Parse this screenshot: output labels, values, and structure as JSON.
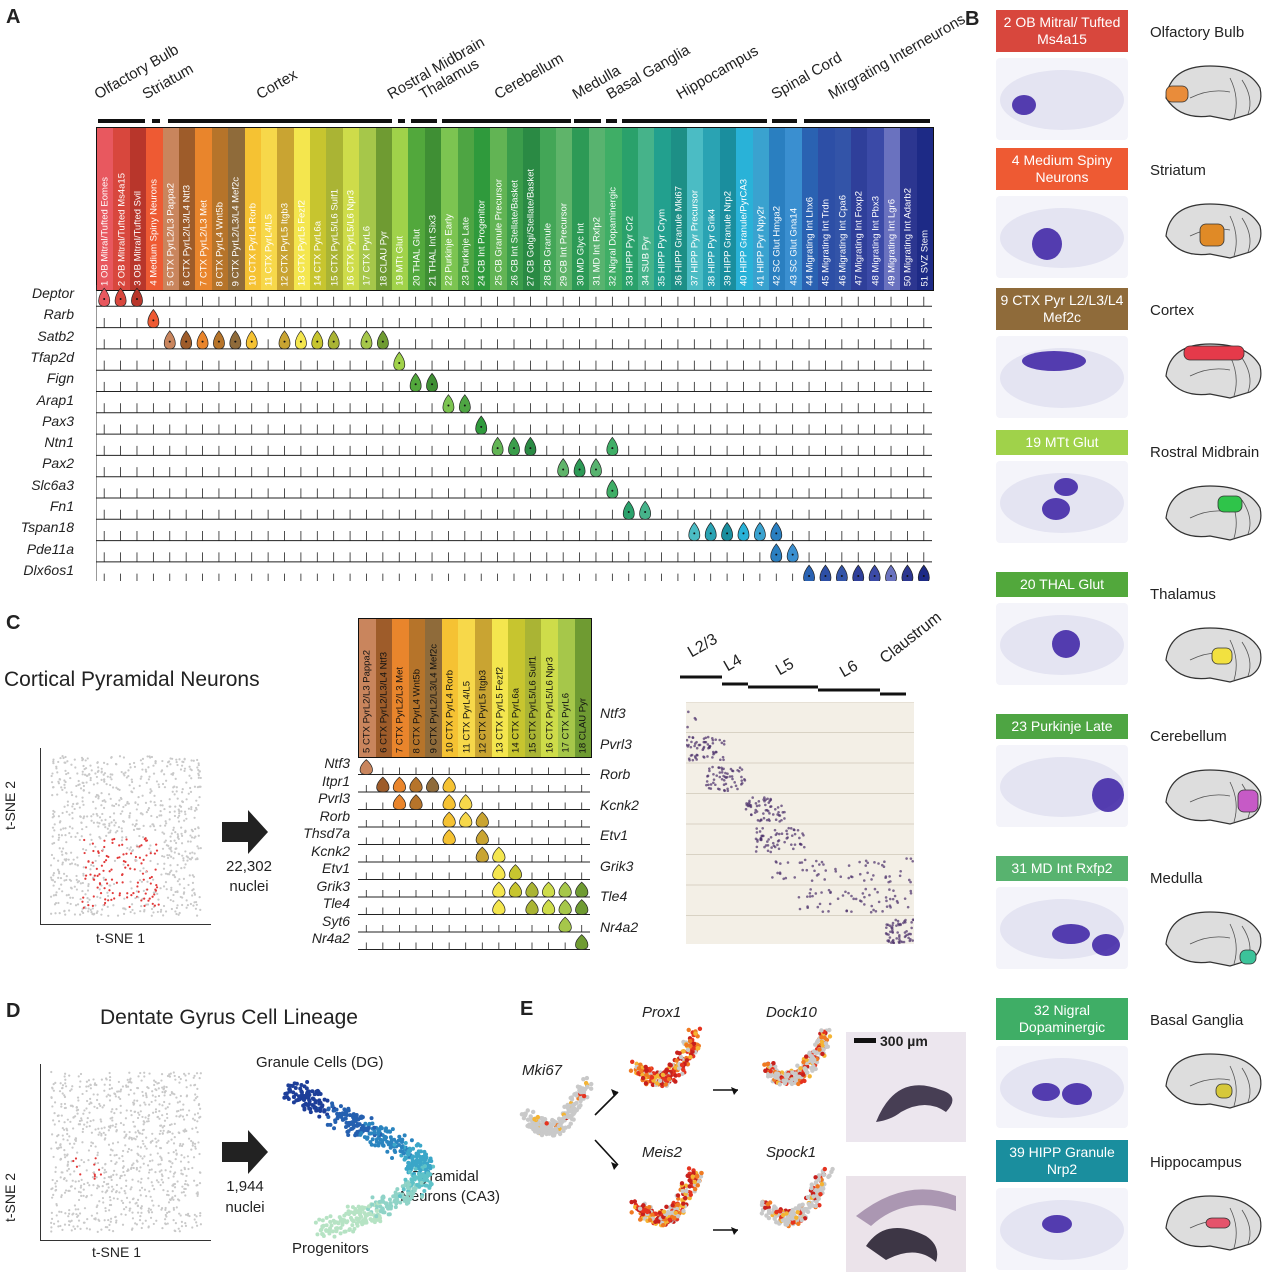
{
  "panels": {
    "A": "A",
    "B": "B",
    "C": "C",
    "D": "D",
    "E": "E"
  },
  "regions": [
    "Olfactory Bulb",
    "Striatum",
    "Cortex",
    "Rostral Midbrain",
    "Thalamus",
    "Cerebellum",
    "Medulla",
    "Basal Ganglia",
    "Hippocampus",
    "Spinal Cord",
    "Mirgrating Interneurons"
  ],
  "clusters": [
    {
      "label": "1 OB Mitral/Tufted Eomes",
      "color": "#e8585f"
    },
    {
      "label": "2 OB Mitral/Tufted Ms4a15",
      "color": "#d8473d"
    },
    {
      "label": "3 OB Mitral/Tufted Svil",
      "color": "#b8362b"
    },
    {
      "label": "4 Medium Spiny Neurons",
      "color": "#ee5a33"
    },
    {
      "label": "5 CTX PyrL2/L3 Pappa2",
      "color": "#c9855d"
    },
    {
      "label": "6 CTX PyrL2/L3/L4 Ntf3",
      "color": "#9e5c2a"
    },
    {
      "label": "7 CTX PyrL2/L3 Met",
      "color": "#e9852c"
    },
    {
      "label": "8 CTX PyrL4 Wnt5b",
      "color": "#b6742a"
    },
    {
      "label": "9 CTX PyrL2/L3/L4 Mef2c",
      "color": "#8f6b3a"
    },
    {
      "label": "10 CTX PyrL4 Rorb",
      "color": "#f5c233"
    },
    {
      "label": "11 CTX PyrL4/L5",
      "color": "#f7d84a"
    },
    {
      "label": "12 CTX PyrL5 Itgb3",
      "color": "#c9a432"
    },
    {
      "label": "13 CTX PyrL5 Fezf2",
      "color": "#f4e64e"
    },
    {
      "label": "14 CTX PyrL6a",
      "color": "#c7c52f"
    },
    {
      "label": "15 CTX PyrL5/L6 Sulf1",
      "color": "#aab434"
    },
    {
      "label": "16 CTX PyrL5/L6 Npr3",
      "color": "#cedc4a"
    },
    {
      "label": "17 CTX PyrL6",
      "color": "#a6c74a"
    },
    {
      "label": "18 CLAU Pyr",
      "color": "#6f9b32"
    },
    {
      "label": "19 MTt Glut",
      "color": "#a0d24a"
    },
    {
      "label": "20 THAL Glut",
      "color": "#52a83c"
    },
    {
      "label": "21 THAL Int Six3",
      "color": "#3f8f34"
    },
    {
      "label": "22 Purkinje Early",
      "color": "#7cc451"
    },
    {
      "label": "23 Purkinje Late",
      "color": "#4ea543"
    },
    {
      "label": "24 CB Int Progenitor",
      "color": "#2f9a3c"
    },
    {
      "label": "25 CB Granule Precursor",
      "color": "#62b454"
    },
    {
      "label": "26 CB Int Stellate/Basket",
      "color": "#3b9d4b"
    },
    {
      "label": "27 CB Golgi/Stellate/Basket",
      "color": "#2a8a44"
    },
    {
      "label": "28 CB Granule",
      "color": "#43a657"
    },
    {
      "label": "29 CB Int Precursor",
      "color": "#5fb46a"
    },
    {
      "label": "30 MD Glyc Int",
      "color": "#2d9a56"
    },
    {
      "label": "31 MD Int Rxfp2",
      "color": "#58b36f"
    },
    {
      "label": "32 Nigral Dopaminergic",
      "color": "#3fae66"
    },
    {
      "label": "33 HIPP Pyr Cr2",
      "color": "#2aa16b"
    },
    {
      "label": "34 SUB Pyr",
      "color": "#46b38a"
    },
    {
      "label": "35 HIPP Pyr Crym",
      "color": "#22a08e"
    },
    {
      "label": "36 HIPP Granule Mki67",
      "color": "#1d8f86"
    },
    {
      "label": "37 HIPP Pyr Precursor",
      "color": "#4bbcc4"
    },
    {
      "label": "38 HIPP Pyr Grik4",
      "color": "#2aa3b3"
    },
    {
      "label": "39 HIPP Granule Nrp2",
      "color": "#1a8e9e"
    },
    {
      "label": "40 HIPP Granule/PyrCA3",
      "color": "#29b2d8"
    },
    {
      "label": "41 HIPP Pyr Npy2r",
      "color": "#3aa2cf"
    },
    {
      "label": "42 SC Glut Hmga2",
      "color": "#2a7fc0"
    },
    {
      "label": "43 SC Glut Gna14",
      "color": "#3a8fd0"
    },
    {
      "label": "44 Migrating Int Lhx6",
      "color": "#2a62b2"
    },
    {
      "label": "45 Migrating Int Trdn",
      "color": "#2d4fa6"
    },
    {
      "label": "46 Migrating Int Cpa6",
      "color": "#3354a8"
    },
    {
      "label": "47 Migrating Int Foxp2",
      "color": "#2f3f9a"
    },
    {
      "label": "48 Migrating Int Pbx3",
      "color": "#3b4aa7"
    },
    {
      "label": "49 Migrating Int Lgr6",
      "color": "#6a72bf"
    },
    {
      "label": "50 Migrating Int Adarb2",
      "color": "#2c3690"
    },
    {
      "label": "51 SVZ Stem",
      "color": "#1d2a86"
    }
  ],
  "genesA": [
    "Deptor",
    "Rarb",
    "Satb2",
    "Tfap2d",
    "Fign",
    "Arap1",
    "Pax3",
    "Ntn1",
    "Pax2",
    "Slc6a3",
    "Fn1",
    "Tspan18",
    "Pde11a",
    "Dlx6os1"
  ],
  "panelC": {
    "title": "Cortical Pyramidal Neurons",
    "tsne_y": "t-SNE 2",
    "tsne_x": "t-SNE 1",
    "count": "22,302",
    "count_unit": "nuclei",
    "genes": [
      "Ntf3",
      "Itpr1",
      "Pvrl3",
      "Rorb",
      "Thsd7a",
      "Kcnk2",
      "Etv1",
      "Grik3",
      "Tle4",
      "Syt6",
      "Nr4a2"
    ],
    "ish_genes": [
      "Ntf3",
      "Pvrl3",
      "Rorb",
      "Kcnk2",
      "Etv1",
      "Grik3",
      "Tle4",
      "Nr4a2"
    ],
    "layers": [
      "L2/3",
      "L4",
      "L5",
      "L6",
      "Claustrum"
    ]
  },
  "panelD": {
    "title": "Dentate Gyrus Cell Lineage",
    "tsne_y": "t-SNE 2",
    "tsne_x": "t-SNE 1",
    "count": "1,944",
    "count_unit": "nuclei",
    "granule": "Granule Cells (DG)",
    "pyramidal_1": "Pyramidal",
    "pyramidal_2": "Neurons (CA3)",
    "progenitors": "Progenitors"
  },
  "panelE": {
    "genes": [
      "Mki67",
      "Prox1",
      "Dock10",
      "Meis2",
      "Spock1"
    ],
    "scale": "300 µm"
  },
  "panelB": [
    {
      "h": "2 OB Mitral/ Tufted Ms4a15",
      "r": "Olfactory Bulb",
      "c": "#d8473d"
    },
    {
      "h": "4 Medium Spiny Neurons",
      "r": "Striatum",
      "c": "#ee5a33"
    },
    {
      "h": "9 CTX Pyr L2/L3/L4 Mef2c",
      "r": "Cortex",
      "c": "#8f6b3a"
    },
    {
      "h": "19 MTt Glut",
      "r": "Rostral Midbrain",
      "c": "#a0d24a"
    },
    {
      "h": "20 THAL Glut",
      "r": "Thalamus",
      "c": "#52a83c"
    },
    {
      "h": "23 Purkinje Late",
      "r": "Cerebellum",
      "c": "#4ea543"
    },
    {
      "h": "31 MD Int Rxfp2",
      "r": "Medulla",
      "c": "#58b36f"
    },
    {
      "h": "32 Nigral Dopaminergic",
      "r": "Basal Ganglia",
      "c": "#3fae66"
    },
    {
      "h": "39 HIPP Granule Nrp2",
      "r": "Hippocampus",
      "c": "#1a8e9e"
    }
  ]
}
